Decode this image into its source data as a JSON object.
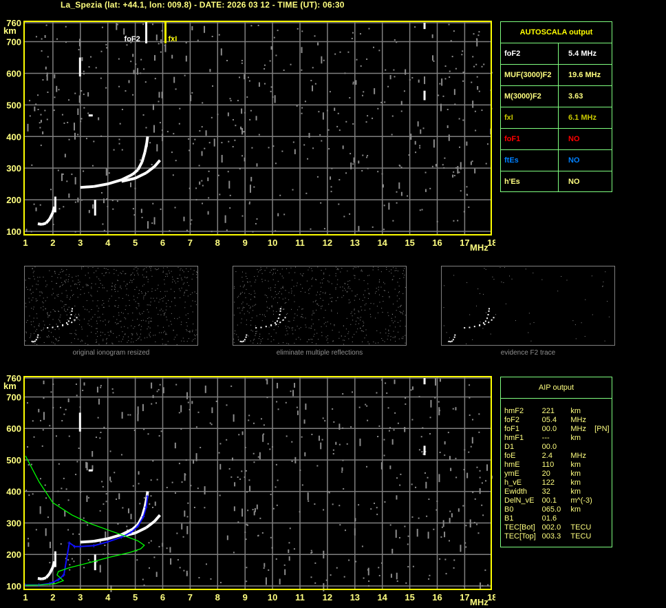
{
  "header": {
    "title": "La_Spezia (lat: +44.1, lon: 009.8) - DATE: 2026 03 12 - TIME (UT): 06:30"
  },
  "colors": {
    "frame": "#ffff00",
    "grid": "#808080",
    "table_border": "#80ff80",
    "aip_trace": "#0000ff",
    "profile": "#00ff00",
    "foF1": "#ff0000",
    "ftEs": "#0080ff",
    "fxI": "#c8c800"
  },
  "chart_data": [
    {
      "type": "scatter",
      "title": "",
      "xlabel": "MHz",
      "ylabel": "km",
      "xlim": [
        1,
        18
      ],
      "ylim": [
        100,
        760
      ],
      "x_ticks": [
        "1",
        "2",
        "3",
        "4",
        "5",
        "6",
        "7",
        "8",
        "9",
        "10",
        "11",
        "12",
        "13",
        "14",
        "15",
        "16",
        "17",
        "18"
      ],
      "y_ticks": [
        "760",
        "700",
        "600",
        "500",
        "400",
        "300",
        "200",
        "100"
      ],
      "grid": true,
      "markers": [
        {
          "label": "foF2",
          "x": 5.4
        },
        {
          "label": "fxI",
          "x": 6.1
        }
      ],
      "series": [
        {
          "points": [
            [
              1.45,
              124
            ],
            [
              1.6,
              122
            ],
            [
              1.75,
              126
            ],
            [
              1.88,
              139
            ],
            [
              2.0,
              160
            ],
            [
              2.05,
              178
            ]
          ]
        },
        {
          "points": [
            [
              3.0,
              239
            ],
            [
              3.5,
              242
            ],
            [
              4.0,
              250
            ],
            [
              4.5,
              263
            ],
            [
              4.9,
              280
            ],
            [
              5.1,
              295
            ],
            [
              5.25,
              320
            ],
            [
              5.35,
              350
            ],
            [
              5.42,
              380
            ],
            [
              5.45,
              400
            ]
          ]
        },
        {
          "points": [
            [
              4.5,
              258
            ],
            [
              5.0,
              268
            ],
            [
              5.4,
              285
            ],
            [
              5.7,
              305
            ],
            [
              5.9,
              325
            ]
          ]
        }
      ]
    },
    {
      "type": "line",
      "xlabel": "MHz",
      "ylabel": "km",
      "xlim": [
        1,
        18
      ],
      "ylim": [
        100,
        760
      ],
      "series": [
        {
          "color": "blue",
          "points": [
            [
              1.0,
              103
            ],
            [
              1.5,
              103
            ],
            [
              1.9,
              108
            ],
            [
              2.2,
              120
            ],
            [
              2.4,
              135
            ],
            [
              2.6,
              237
            ],
            [
              2.8,
              225
            ],
            [
              3.0,
              225
            ],
            [
              3.5,
              228
            ],
            [
              4.0,
              240
            ],
            [
              4.5,
              255
            ],
            [
              4.85,
              270
            ],
            [
              5.1,
              290
            ],
            [
              5.3,
              320
            ],
            [
              5.4,
              350
            ],
            [
              5.45,
              385
            ]
          ]
        },
        {
          "color": "green",
          "points": [
            [
              1.0,
              513
            ],
            [
              1.5,
              430
            ],
            [
              2.0,
              364
            ],
            [
              2.7,
              325
            ],
            [
              3.33,
              299
            ],
            [
              4.0,
              278
            ],
            [
              4.58,
              260
            ],
            [
              5.1,
              243
            ],
            [
              5.33,
              229
            ],
            [
              5.2,
              218
            ],
            [
              4.83,
              207
            ],
            [
              4.0,
              190
            ],
            [
              3.33,
              174
            ],
            [
              2.6,
              158
            ],
            [
              2.2,
              146
            ],
            [
              2.15,
              135
            ],
            [
              2.38,
              117
            ],
            [
              2.08,
              107
            ],
            [
              1.5,
              103
            ],
            [
              1.0,
              102
            ]
          ]
        }
      ]
    }
  ],
  "autoscala": {
    "title": "AUTOSCALA output",
    "rows": [
      {
        "key": "foF2",
        "value": "5.4 MHz",
        "color": "#ffffff"
      },
      {
        "key": "MUF(3000)F2",
        "value": "19.6 MHz",
        "color": "#ffff80"
      },
      {
        "key": "M(3000)F2",
        "value": "3.63",
        "color": "#ffff80"
      },
      {
        "key": "fxI",
        "value": "6.1 MHz",
        "color": "#c8c800"
      },
      {
        "key": "foF1",
        "value": "NO",
        "color": "#ff0000"
      },
      {
        "key": "ftEs",
        "value": "NO",
        "color": "#0080ff"
      },
      {
        "key": "h'Es",
        "value": "NO",
        "color": "#ffff80"
      }
    ]
  },
  "aip": {
    "title": "AIP output",
    "rows": [
      [
        "hmF2",
        "221",
        "km",
        ""
      ],
      [
        "foF2",
        "05.4",
        "MHz",
        ""
      ],
      [
        "foF1",
        "00.0",
        "MHz",
        "[PN]"
      ],
      [
        "hmF1",
        "---",
        "km",
        ""
      ],
      [
        "D1",
        "00.0",
        "",
        ""
      ],
      [
        "foE",
        "2.4",
        "MHz",
        ""
      ],
      [
        "hmE",
        "110",
        "km",
        ""
      ],
      [
        "ymE",
        "20",
        "km",
        ""
      ],
      [
        "h_vE",
        "122",
        "km",
        ""
      ],
      [
        "Ewidth",
        "32",
        "km",
        ""
      ],
      [
        "DelN_vE",
        "00.1",
        "m^(-3)",
        ""
      ],
      [
        "B0",
        "065.0",
        "km",
        ""
      ],
      [
        "B1",
        "01.6",
        "",
        ""
      ],
      [
        "TEC[Bot]",
        "002.0",
        "TECU",
        ""
      ],
      [
        "TEC[Top]",
        "003.3",
        "TECU",
        ""
      ]
    ]
  },
  "thumbnails": [
    {
      "caption": "original ionogram resized"
    },
    {
      "caption": "eliminate multiple reflections"
    },
    {
      "caption": "evidence F2 trace"
    }
  ]
}
